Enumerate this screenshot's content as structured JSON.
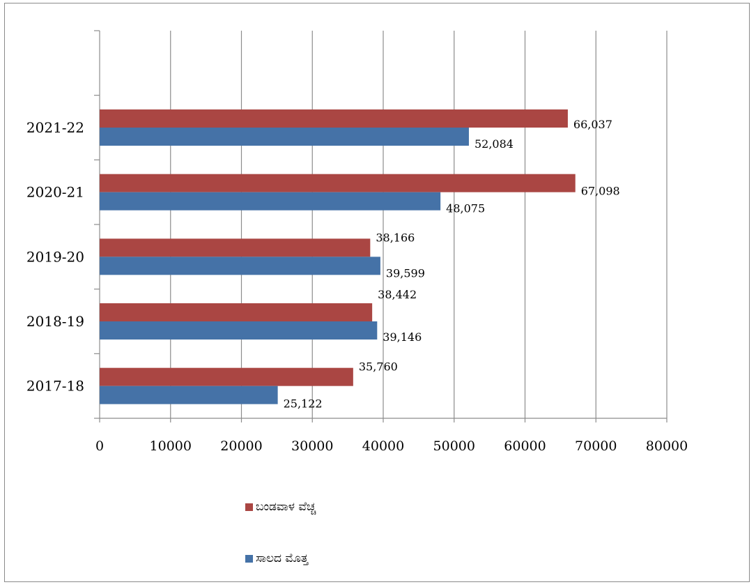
{
  "chart_data": {
    "type": "bar",
    "orientation": "horizontal",
    "categories": [
      "2017-18",
      "2018-19",
      "2019-20",
      "2020-21",
      "2021-22"
    ],
    "series": [
      {
        "name": "ಸಾಲದ ಮೊತ್ತ",
        "values": [
          25122,
          39146,
          39599,
          48075,
          52084
        ],
        "labels": [
          "25,122",
          "39,146",
          "39,599",
          "48,075",
          "52,084"
        ],
        "color": "#4572A7"
      },
      {
        "name": "ಬಂಡವಾಳ ವೆಚ್ಚ",
        "values": [
          35760,
          38442,
          38166,
          67098,
          66037
        ],
        "labels": [
          "35,760",
          "38,442",
          "38,166",
          "67,098",
          "66,037"
        ],
        "color": "#AA4643"
      }
    ],
    "xlim": [
      0,
      80000
    ],
    "xticks": [
      "0",
      "10000",
      "20000",
      "30000",
      "40000",
      "50000",
      "60000",
      "70000",
      "80000"
    ],
    "grid": "vertical",
    "legend_position": "bottom"
  }
}
